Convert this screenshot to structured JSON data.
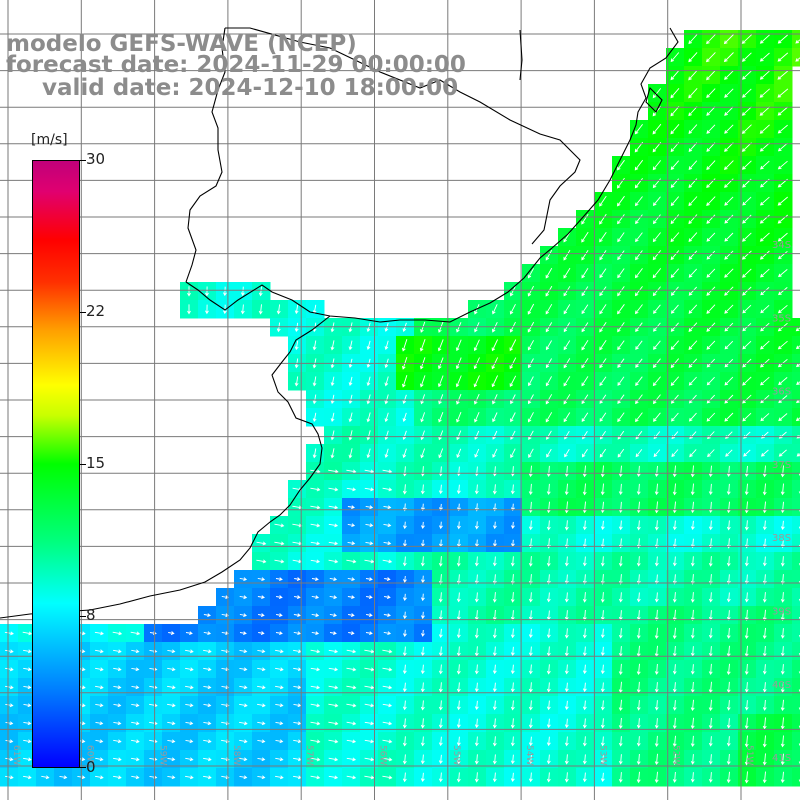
{
  "title": {
    "line1": "modelo GEFS-WAVE (NCEP)",
    "line2": "forecast date: 2024-11-29 00:00:00",
    "line3": "valid date: 2024-12-10 18:00:00"
  },
  "colorbar": {
    "unit": "[m/s]",
    "ticks": [
      "30",
      "22",
      "15",
      "8",
      "0"
    ],
    "tick_values": [
      30,
      22,
      15,
      8,
      0
    ],
    "colors": [
      "#0000ff",
      "#0080ff",
      "#00ffff",
      "#00ff80",
      "#00ff00",
      "#ffff00",
      "#ff8000",
      "#ff0000",
      "#c0007a"
    ]
  },
  "map": {
    "lat_labels": [
      "34S",
      "35S",
      "36S",
      "37S",
      "38S",
      "39S",
      "40S",
      "41S"
    ],
    "lon_labels": [
      "61W",
      "60W",
      "59W",
      "58W",
      "57W",
      "56W",
      "55W",
      "54W",
      "53W",
      "52W",
      "51W",
      "50W"
    ],
    "field": "wind speed",
    "colors": {
      "land": "#ffffff",
      "coastline": "#000000",
      "grid": "#808080",
      "arrows": "#ffffff"
    }
  }
}
